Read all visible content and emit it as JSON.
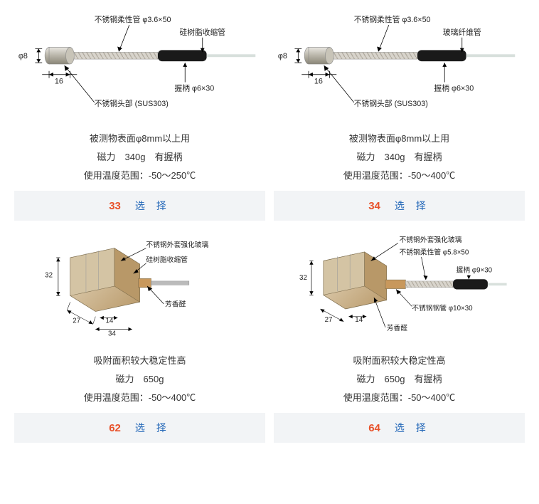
{
  "products": [
    {
      "diagram": {
        "type": "probe-a",
        "labels": {
          "flex_tube": "不锈钢柔性管  φ3.6×50",
          "sleeve": "硅树脂收缩管",
          "dia": "φ8",
          "len": "16",
          "grip": "握柄  φ6×30",
          "head": "不锈钢头部 (SUS303)"
        }
      },
      "desc": {
        "l1": "被测物表面φ8mm以上用",
        "l2": "磁力　340g　有握柄",
        "l3": "使用温度范围：-50～250℃"
      },
      "number": "33",
      "select_label": "选  择"
    },
    {
      "diagram": {
        "type": "probe-a",
        "labels": {
          "flex_tube": "不锈钢柔性管  φ3.6×50",
          "sleeve": "玻璃纤维管",
          "dia": "φ8",
          "len": "16",
          "grip": "握柄  φ6×30",
          "head": "不锈钢头部 (SUS303)"
        }
      },
      "desc": {
        "l1": "被测物表面φ8mm以上用",
        "l2": "磁力　340g　有握柄",
        "l3": "使用温度范围：-50～400℃"
      },
      "number": "34",
      "select_label": "选  择"
    },
    {
      "diagram": {
        "type": "probe-b",
        "labels": {
          "glass": "不锈钢外套强化玻璃",
          "sleeve": "硅树脂收缩管",
          "h": "32",
          "w1": "27",
          "w2": "14",
          "w3": "34",
          "aromatic": "芳香醛"
        }
      },
      "desc": {
        "l1": "吸附面积较大稳定性高",
        "l2": "磁力　650g",
        "l3": "使用温度范围：-50～400℃"
      },
      "number": "62",
      "select_label": "选  择"
    },
    {
      "diagram": {
        "type": "probe-c",
        "labels": {
          "glass": "不锈钢外套强化玻璃",
          "flex_tube": "不锈钢柔性管  φ5.8×50",
          "grip": "握柄 φ9×30",
          "steel_tube": "不锈钢钢管 φ10×30",
          "h": "32",
          "w1": "27",
          "w2": "14",
          "aromatic": "芳香醛"
        }
      },
      "desc": {
        "l1": "吸附面积较大稳定性高",
        "l2": "磁力　650g　有握柄",
        "l3": "使用温度范围：-50～400℃"
      },
      "number": "64",
      "select_label": "选  择"
    }
  ],
  "colors": {
    "number": "#e8522b",
    "select": "#2367b8",
    "bar_bg": "#f2f4f6",
    "text": "#333333"
  }
}
